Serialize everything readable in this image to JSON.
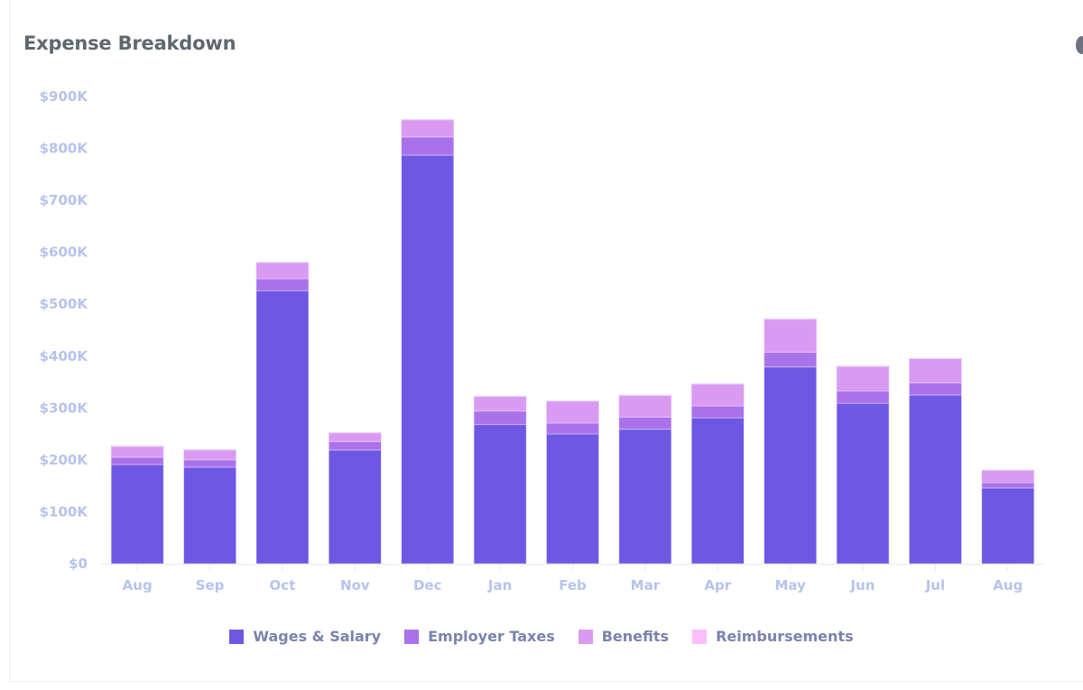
{
  "header": {
    "title": "Expense Breakdown"
  },
  "colors": {
    "wages": "#6e57e2",
    "taxes": "#a972ea",
    "benefits": "#da9af2",
    "reimbursements": "#fcbdfd",
    "axis_text": "#b7c3ec",
    "legend_text": "#7a83ad"
  },
  "chart_data": {
    "type": "bar",
    "stacked": true,
    "title": "Expense Breakdown",
    "xlabel": "",
    "ylabel": "",
    "ylim": [
      0,
      900000
    ],
    "yticks": [
      0,
      100000,
      200000,
      300000,
      400000,
      500000,
      600000,
      700000,
      800000,
      900000
    ],
    "ytick_labels": [
      "$0",
      "$100K",
      "$200K",
      "$300K",
      "$400K",
      "$500K",
      "$600K",
      "$700K",
      "$800K",
      "$900K"
    ],
    "categories": [
      "Aug",
      "Sep",
      "Oct",
      "Nov",
      "Dec",
      "Jan",
      "Feb",
      "Mar",
      "Apr",
      "May",
      "Jun",
      "Jul",
      "Aug"
    ],
    "series": [
      {
        "name": "Wages & Salary",
        "color": "#6e57e2",
        "values": [
          191000,
          186000,
          526000,
          219000,
          787000,
          268000,
          250000,
          259000,
          281000,
          379000,
          309000,
          325000,
          146000
        ]
      },
      {
        "name": "Employer Taxes",
        "color": "#a972ea",
        "values": [
          14000,
          14000,
          23000,
          16000,
          35000,
          26000,
          21000,
          23000,
          23000,
          28000,
          24000,
          23000,
          10000
        ]
      },
      {
        "name": "Benefits",
        "color": "#da9af2",
        "values": [
          21000,
          19000,
          31000,
          17000,
          33000,
          28000,
          42000,
          42000,
          42000,
          64000,
          47000,
          47000,
          24000
        ]
      },
      {
        "name": "Reimbursements",
        "color": "#fcbdfd",
        "values": [
          1000,
          1000,
          1000,
          1000,
          1000,
          1000,
          1000,
          1000,
          1000,
          1000,
          1000,
          1000,
          1000
        ]
      }
    ],
    "grid": false,
    "legend": "bottom-center"
  }
}
